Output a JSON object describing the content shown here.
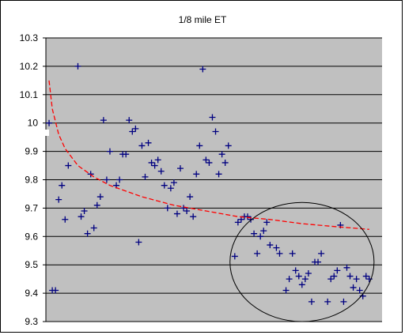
{
  "chart_data": {
    "type": "scatter",
    "title": "1/8 mile ET",
    "xlabel": "",
    "ylabel": "",
    "ylim": [
      9.3,
      10.3
    ],
    "yticks": [
      9.3,
      9.4,
      9.5,
      9.6,
      9.7,
      9.8,
      9.9,
      10,
      10.1,
      10.2,
      10.3
    ],
    "xlim": [
      0,
      105
    ],
    "grid": true,
    "legend": "none",
    "colors": {
      "plot_background": "#c0c0c0",
      "marker": "#000080",
      "trendline": "#ff0000",
      "gridline": "#000000",
      "annotation": "#000000"
    },
    "series": [
      {
        "marker": "plus",
        "points": [
          [
            1,
            10.0
          ],
          [
            2,
            9.41
          ],
          [
            3,
            9.41
          ],
          [
            4,
            9.73
          ],
          [
            5,
            9.78
          ],
          [
            6,
            9.66
          ],
          [
            7,
            9.85
          ],
          [
            10,
            10.2
          ],
          [
            11,
            9.67
          ],
          [
            12,
            9.69
          ],
          [
            13,
            9.61
          ],
          [
            14,
            9.82
          ],
          [
            15,
            9.63
          ],
          [
            16,
            9.71
          ],
          [
            17,
            9.74
          ],
          [
            18,
            10.01
          ],
          [
            19,
            9.8
          ],
          [
            20,
            9.9
          ],
          [
            22,
            9.78
          ],
          [
            23,
            9.8
          ],
          [
            24,
            9.89
          ],
          [
            25,
            9.89
          ],
          [
            26,
            10.01
          ],
          [
            27,
            9.97
          ],
          [
            28,
            9.98
          ],
          [
            29,
            9.58
          ],
          [
            30,
            9.92
          ],
          [
            31,
            9.81
          ],
          [
            32,
            9.93
          ],
          [
            33,
            9.86
          ],
          [
            34,
            9.85
          ],
          [
            35,
            9.87
          ],
          [
            36,
            9.83
          ],
          [
            37,
            9.78
          ],
          [
            38,
            9.7
          ],
          [
            39,
            9.77
          ],
          [
            40,
            9.79
          ],
          [
            41,
            9.68
          ],
          [
            42,
            9.84
          ],
          [
            43,
            9.7
          ],
          [
            44,
            9.69
          ],
          [
            45,
            9.74
          ],
          [
            46,
            9.67
          ],
          [
            47,
            9.82
          ],
          [
            48,
            9.92
          ],
          [
            49,
            10.19
          ],
          [
            50,
            9.87
          ],
          [
            51,
            9.86
          ],
          [
            52,
            10.02
          ],
          [
            53,
            9.97
          ],
          [
            54,
            9.82
          ],
          [
            55,
            9.89
          ],
          [
            56,
            9.86
          ],
          [
            57,
            9.92
          ],
          [
            59,
            9.53
          ],
          [
            60,
            9.65
          ],
          [
            61,
            9.66
          ],
          [
            62,
            9.67
          ],
          [
            63,
            9.67
          ],
          [
            64,
            9.66
          ],
          [
            65,
            9.61
          ],
          [
            66,
            9.54
          ],
          [
            67,
            9.6
          ],
          [
            68,
            9.62
          ],
          [
            69,
            9.65
          ],
          [
            70,
            9.57
          ],
          [
            72,
            9.56
          ],
          [
            73,
            9.54
          ],
          [
            75,
            9.41
          ],
          [
            76,
            9.45
          ],
          [
            77,
            9.54
          ],
          [
            78,
            9.48
          ],
          [
            79,
            9.46
          ],
          [
            80,
            9.43
          ],
          [
            81,
            9.45
          ],
          [
            82,
            9.47
          ],
          [
            83,
            9.37
          ],
          [
            84,
            9.51
          ],
          [
            85,
            9.51
          ],
          [
            86,
            9.54
          ],
          [
            88,
            9.37
          ],
          [
            89,
            9.45
          ],
          [
            90,
            9.46
          ],
          [
            91,
            9.48
          ],
          [
            92,
            9.64
          ],
          [
            93,
            9.37
          ],
          [
            94,
            9.49
          ],
          [
            95,
            9.46
          ],
          [
            96,
            9.42
          ],
          [
            97,
            9.45
          ],
          [
            98,
            9.41
          ],
          [
            99,
            9.39
          ],
          [
            100,
            9.46
          ],
          [
            101,
            9.45
          ]
        ]
      }
    ],
    "trendline": {
      "type": "logarithmic",
      "points": [
        [
          1,
          10.15
        ],
        [
          2,
          10.05
        ],
        [
          4,
          9.96
        ],
        [
          6,
          9.91
        ],
        [
          10,
          9.85
        ],
        [
          15,
          9.81
        ],
        [
          20,
          9.78
        ],
        [
          30,
          9.74
        ],
        [
          40,
          9.71
        ],
        [
          50,
          9.69
        ],
        [
          60,
          9.67
        ],
        [
          70,
          9.66
        ],
        [
          80,
          9.645
        ],
        [
          90,
          9.635
        ],
        [
          101,
          9.625
        ]
      ]
    },
    "annotation": {
      "shape": "ellipse",
      "cx": 80,
      "cy": 9.51,
      "rx": 22.5,
      "ry": 0.21
    }
  }
}
